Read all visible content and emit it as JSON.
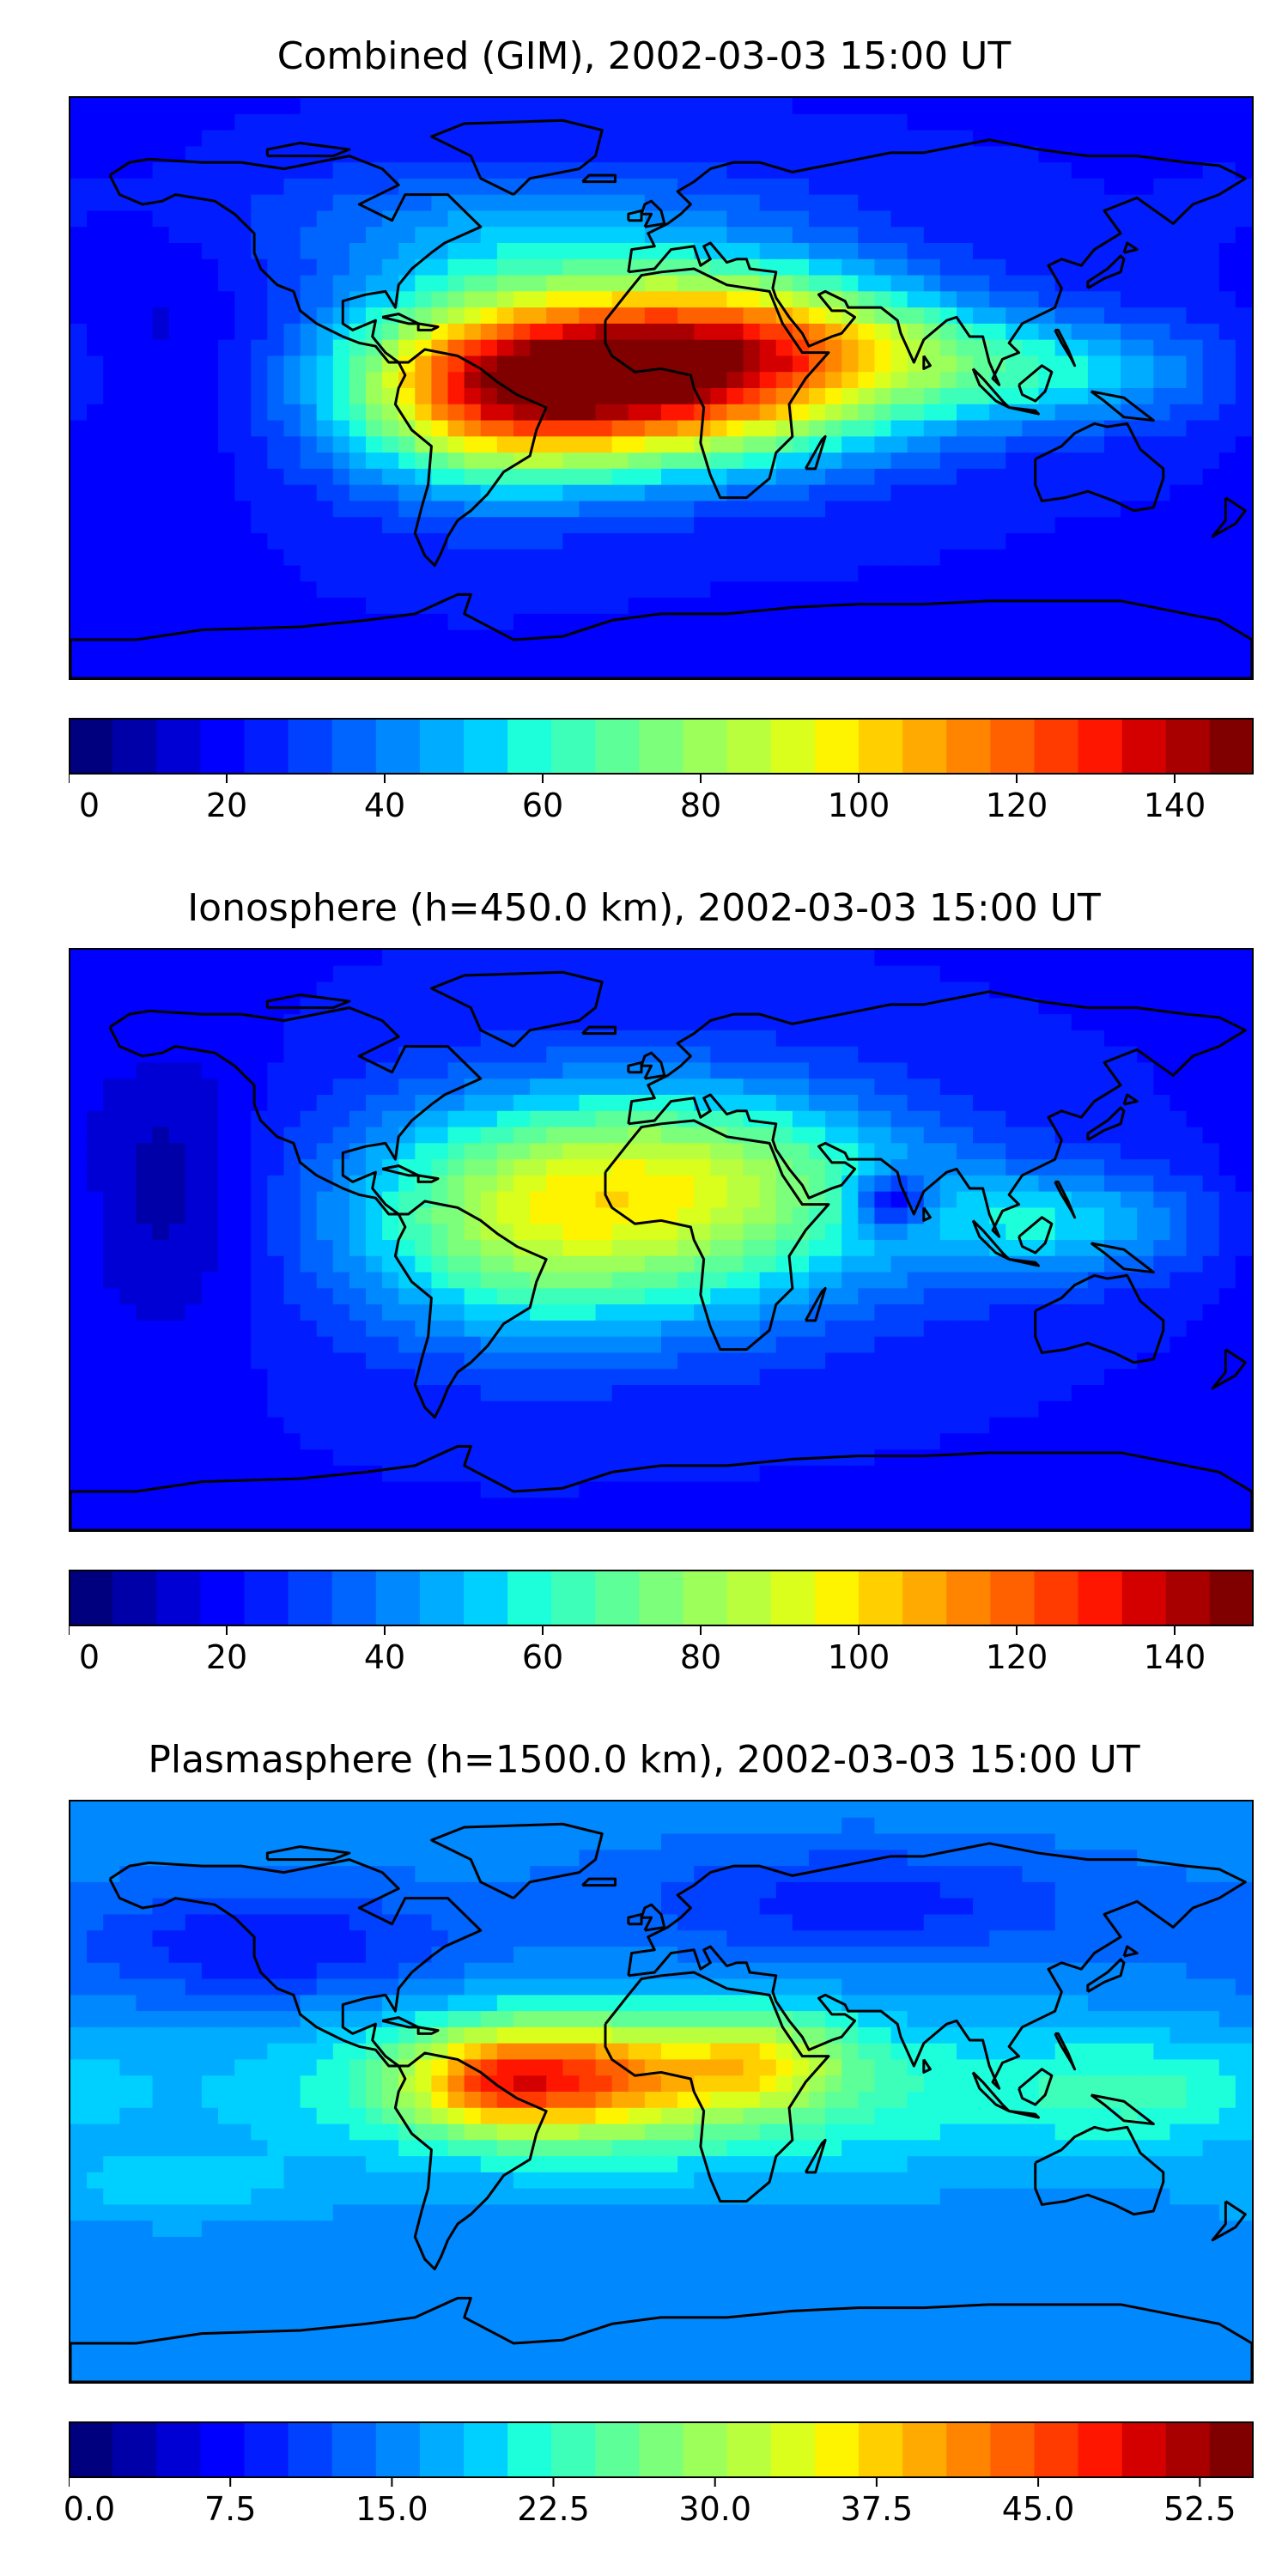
{
  "colormap": [
    "#00007f",
    "#0000a8",
    "#0000d4",
    "#0000ff",
    "#001cff",
    "#0040ff",
    "#0064ff",
    "#0088ff",
    "#00acff",
    "#00d0ff",
    "#1cffda",
    "#3dffb9",
    "#5dff99",
    "#7cff7a",
    "#9cff5a",
    "#b9ff3d",
    "#daff1c",
    "#fff400",
    "#ffcf00",
    "#ffaa00",
    "#ff8500",
    "#ff6000",
    "#ff3b00",
    "#ff1600",
    "#d40000",
    "#a80000",
    "#800000"
  ],
  "coast_color": "#000000",
  "chart_data": [
    {
      "type": "heatmap",
      "title": "Combined (GIM), 2002-03-03 15:00 UT",
      "xlabel": "",
      "ylabel": "",
      "vlim": [
        0,
        150
      ],
      "colorbar_ticks": [
        "0",
        "20",
        "40",
        "60",
        "80",
        "100",
        "120",
        "140"
      ],
      "colorbar_tick_values": [
        0,
        20,
        40,
        60,
        80,
        100,
        120,
        140
      ],
      "grid": false,
      "field": {
        "base": 22,
        "blobs": [
          {
            "lon": -5,
            "lat": 2,
            "sx": 50,
            "sy": 18,
            "amp": 115
          },
          {
            "lon": -55,
            "lat": 0,
            "sx": 30,
            "sy": 22,
            "amp": 50
          },
          {
            "lon": 20,
            "lat": 22,
            "sx": 40,
            "sy": 14,
            "amp": 35
          },
          {
            "lon": 60,
            "lat": 12,
            "sx": 30,
            "sy": 12,
            "amp": 20
          },
          {
            "lon": 120,
            "lat": 5,
            "sx": 35,
            "sy": 12,
            "amp": 30
          },
          {
            "lon": -40,
            "lat": 50,
            "sx": 60,
            "sy": 14,
            "amp": 20
          },
          {
            "lon": -150,
            "lat": 10,
            "sx": 20,
            "sy": 30,
            "amp": -8
          }
        ]
      }
    },
    {
      "type": "heatmap",
      "title": "Ionosphere  (h=450.0 km), 2002-03-03 15:00 UT",
      "xlabel": "",
      "ylabel": "",
      "vlim": [
        0,
        150
      ],
      "colorbar_ticks": [
        "0",
        "20",
        "40",
        "60",
        "80",
        "100",
        "120",
        "140"
      ],
      "colorbar_tick_values": [
        0,
        20,
        40,
        60,
        80,
        100,
        120,
        140
      ],
      "grid": false,
      "field": {
        "base": 22,
        "blobs": [
          {
            "lon": -10,
            "lat": 10,
            "sx": 55,
            "sy": 25,
            "amp": 65
          },
          {
            "lon": -50,
            "lat": 0,
            "sx": 30,
            "sy": 25,
            "amp": 15
          },
          {
            "lon": 20,
            "lat": 25,
            "sx": 40,
            "sy": 15,
            "amp": 15
          },
          {
            "lon": 120,
            "lat": 5,
            "sx": 30,
            "sy": 12,
            "amp": 30
          },
          {
            "lon": 70,
            "lat": 12,
            "sx": 8,
            "sy": 6,
            "amp": -35
          },
          {
            "lon": -150,
            "lat": 15,
            "sx": 20,
            "sy": 30,
            "amp": -15
          }
        ]
      }
    },
    {
      "type": "heatmap",
      "title": "Plasmasphere (h=1500.0 km), 2002-03-03 15:00 UT",
      "xlabel": "",
      "ylabel": "",
      "vlim": [
        0,
        55
      ],
      "colorbar_ticks": [
        "0.0",
        "7.5",
        "15.0",
        "22.5",
        "30.0",
        "37.5",
        "45.0",
        "52.5"
      ],
      "colorbar_tick_values": [
        0,
        7.5,
        15,
        22.5,
        30,
        37.5,
        45,
        52.5
      ],
      "grid": false,
      "field": {
        "base": 15,
        "blobs": [
          {
            "lon": 0,
            "lat": 0,
            "sx": 90,
            "sy": 18,
            "amp": 10
          },
          {
            "lon": -30,
            "lat": 5,
            "sx": 30,
            "sy": 12,
            "amp": 22
          },
          {
            "lon": -55,
            "lat": 2,
            "sx": 15,
            "sy": 10,
            "amp": 8
          },
          {
            "lon": 30,
            "lat": 10,
            "sx": 18,
            "sy": 10,
            "amp": 12
          },
          {
            "lon": 150,
            "lat": 0,
            "sx": 30,
            "sy": 12,
            "amp": 6
          },
          {
            "lon": -120,
            "lat": 45,
            "sx": 40,
            "sy": 12,
            "amp": -7
          },
          {
            "lon": 60,
            "lat": 58,
            "sx": 50,
            "sy": 12,
            "amp": -6
          },
          {
            "lon": -150,
            "lat": -30,
            "sx": 30,
            "sy": 8,
            "amp": 4
          }
        ]
      }
    }
  ]
}
